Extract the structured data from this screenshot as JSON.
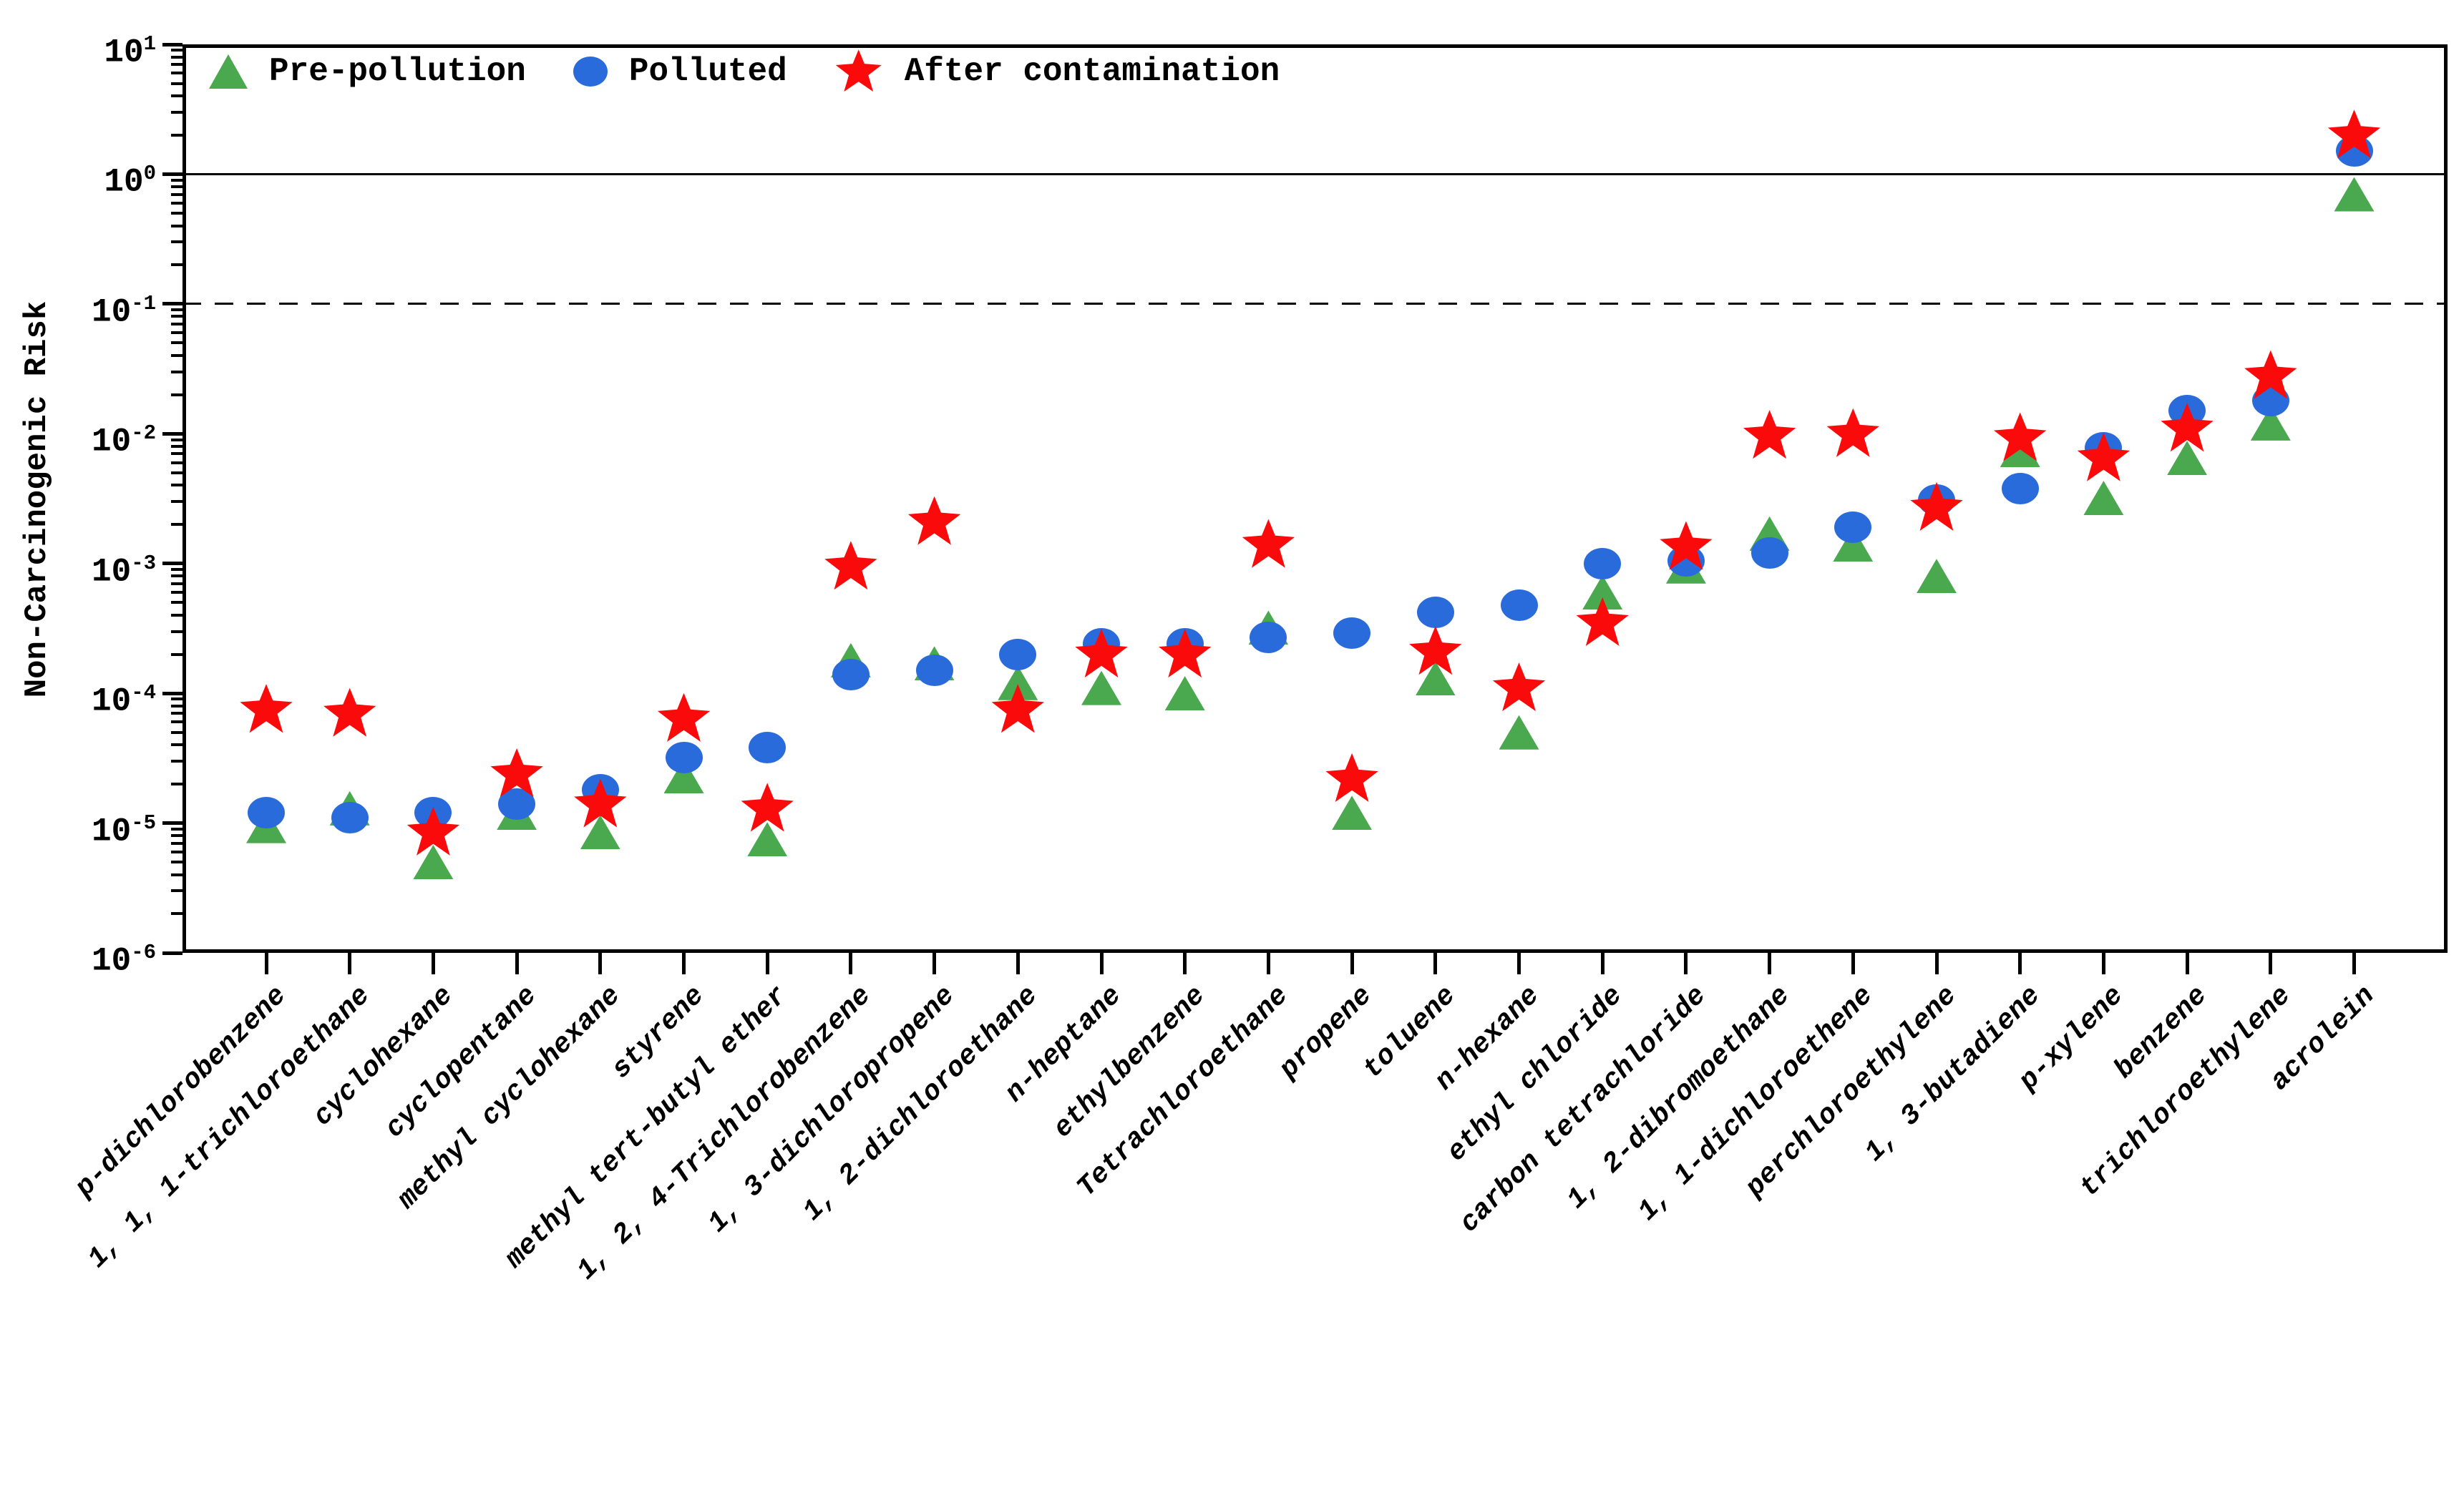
{
  "chart_data": {
    "type": "scatter",
    "title": "",
    "ylabel": "Non-Carcinogenic Risk",
    "xlabel": "",
    "yscale": "log",
    "ylim": [
      1e-06,
      10
    ],
    "ytick_labels": [
      "10^1",
      "10^0",
      "10^-1",
      "10^-2",
      "10^-3",
      "10^-4",
      "10^-5",
      "10^-6"
    ],
    "grid": false,
    "legend_position": "upper-left-inside",
    "x_tick_label_rotation": 45,
    "reference_lines": [
      {
        "y": 1,
        "style": "solid",
        "color": "#000000"
      },
      {
        "y": 0.1,
        "style": "dashed",
        "color": "#000000"
      }
    ],
    "categories": [
      "p-dichlorobenzene",
      "1, 1, 1-trichloroethane",
      "cyclohexane",
      "cyclopentane",
      "methyl cyclohexane",
      "styrene",
      "methyl tert-butyl ether",
      "1, 2, 4-Trichlorobenzene",
      "1, 3-dichloropropene",
      "1, 2-dichloroethane",
      "n-heptane",
      "ethylbenzene",
      "Tetrachloroethane",
      "propene",
      "toluene",
      "n-hexane",
      "ethyl chloride",
      "carbon tetrachloride",
      "1, 2-dibromoethane",
      "1, 1-dichloroethene",
      "perchloroethylene",
      "1, 3-butadiene",
      "p-xylene",
      "benzene",
      "trichloroethylene",
      "acrolein"
    ],
    "series": [
      {
        "name": "Pre-pollution",
        "marker": "triangle",
        "color": "#4aa84e",
        "values": [
          9.5e-06,
          1.3e-05,
          5e-06,
          1.2e-05,
          8.5e-06,
          2.3e-05,
          7.5e-06,
          0.00018,
          0.00017,
          0.00012,
          0.00011,
          0.0001,
          0.00032,
          1.2e-05,
          0.00013,
          5e-05,
          0.0006,
          0.00095,
          0.0017,
          0.0014,
          0.0008,
          0.0075,
          0.0032,
          0.0065,
          0.012,
          0.7
        ]
      },
      {
        "name": "Polluted",
        "marker": "circle",
        "color": "#2a6bdc",
        "values": [
          1.2e-05,
          1.1e-05,
          1.2e-05,
          1.4e-05,
          1.8e-05,
          3.2e-05,
          3.8e-05,
          0.00014,
          0.00015,
          0.0002,
          0.00024,
          0.00024,
          0.00027,
          0.00029,
          0.00042,
          0.00048,
          0.001,
          0.00105,
          0.0012,
          0.0019,
          0.0031,
          0.0038,
          0.0078,
          0.015,
          0.018,
          1.5
        ]
      },
      {
        "name": "After contamination",
        "marker": "star",
        "color": "#fa0a0a",
        "values": [
          7.5e-05,
          7e-05,
          8.5e-06,
          2.4e-05,
          1.4e-05,
          6.4e-05,
          1.3e-05,
          0.00095,
          0.0021,
          7.5e-05,
          0.0002,
          0.0002,
          0.0014,
          2.2e-05,
          0.00021,
          0.00011,
          0.00035,
          0.00135,
          0.0097,
          0.01,
          0.0027,
          0.0093,
          0.0065,
          0.011,
          0.028,
          2.0
        ]
      }
    ]
  }
}
